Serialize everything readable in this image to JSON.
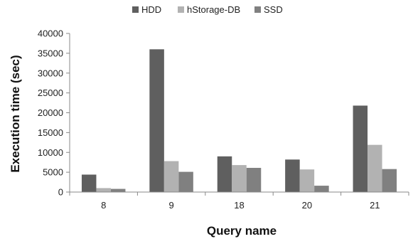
{
  "chart_data": {
    "type": "bar",
    "categories": [
      "8",
      "9",
      "18",
      "20",
      "21"
    ],
    "series": [
      {
        "name": "HDD",
        "color": "#5f5f5f",
        "values": [
          4400,
          36000,
          9000,
          8200,
          21800
        ]
      },
      {
        "name": "hStorage-DB",
        "color": "#b2b2b2",
        "values": [
          1000,
          7800,
          6800,
          5700,
          11900
        ]
      },
      {
        "name": "SSD",
        "color": "#808080",
        "values": [
          800,
          5100,
          6100,
          1600,
          5800
        ]
      }
    ],
    "xlabel": "Query name",
    "ylabel": "Execution time (sec)",
    "ylim": [
      0,
      40000
    ],
    "yticks": [
      "0",
      "5000",
      "10000",
      "15000",
      "20000",
      "25000",
      "30000",
      "35000",
      "40000"
    ],
    "legend_position": "top",
    "grid": false
  }
}
